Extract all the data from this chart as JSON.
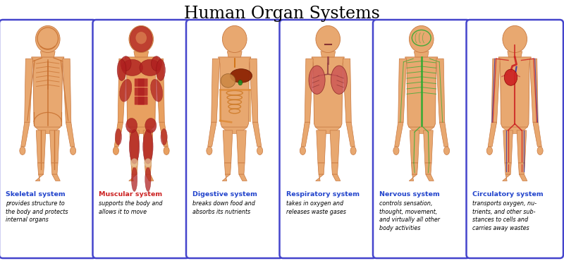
{
  "title": "Human Organ Systems",
  "title_fontsize": 17,
  "title_font": "serif",
  "background_color": "#ffffff",
  "border_color": "#4444cc",
  "border_linewidth": 1.8,
  "skin_color": "#e8a870",
  "skin_edge": "#c87840",
  "systems": [
    {
      "name": "Skeletal system",
      "description": "provides structure to\nthe body and protects\ninternal organs",
      "name_color": "#2244cc",
      "desc_color": "#000000",
      "organ_color": "#c87030",
      "system_type": "skeletal"
    },
    {
      "name": "Muscular system",
      "description": "supports the body and\nallows it to move",
      "name_color": "#cc2222",
      "desc_color": "#000000",
      "organ_color": "#b02020",
      "system_type": "muscular"
    },
    {
      "name": "Digestive system",
      "description": "breaks down food and\nabsorbs its nutrients",
      "name_color": "#2244cc",
      "desc_color": "#000000",
      "organ_color": "#8B2500",
      "system_type": "digestive"
    },
    {
      "name": "Respiratory system",
      "description": "takes in oxygen and\nreleases waste gases",
      "name_color": "#2244cc",
      "desc_color": "#000000",
      "organ_color": "#aa3333",
      "system_type": "respiratory"
    },
    {
      "name": "Nervous system",
      "description": "controls sensation,\nthought, movement,\nand virtually all other\nbody activities",
      "name_color": "#2244cc",
      "desc_color": "#000000",
      "organ_color": "#33aa33",
      "system_type": "nervous"
    },
    {
      "name": "Circulatory system",
      "description": "transports oxygen, nu-\ntrients, and other sub-\nstances to cells and\ncarries away wastes",
      "name_color": "#2244cc",
      "desc_color": "#000000",
      "organ_color": "#cc2222",
      "system_type": "circulatory"
    }
  ],
  "fig_width": 8.0,
  "fig_height": 3.7
}
